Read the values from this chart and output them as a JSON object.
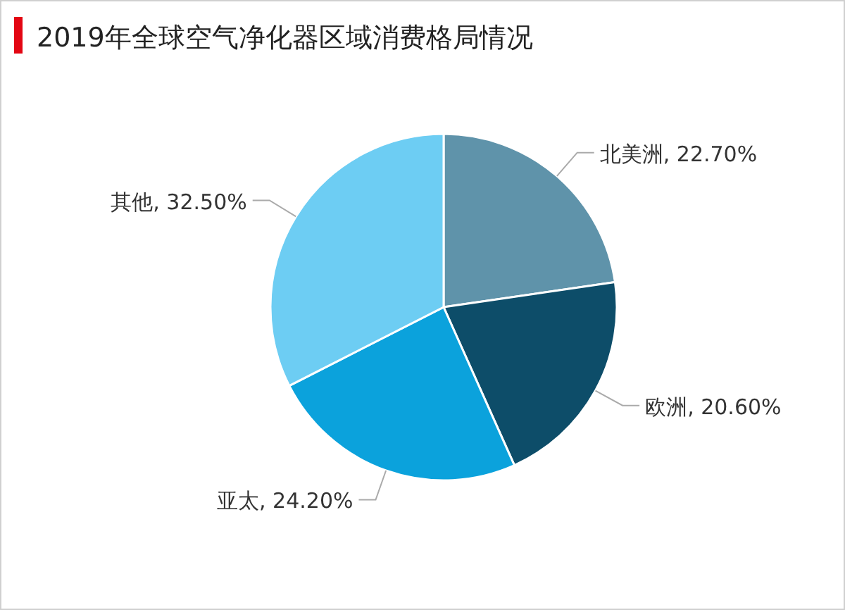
{
  "chart_data": {
    "type": "pie",
    "title": "2019年全球空气净化器区域消费格局情况",
    "categories": [
      "北美洲",
      "欧洲",
      "亚太",
      "其他"
    ],
    "values": [
      22.7,
      20.6,
      24.2,
      32.5
    ],
    "colors": [
      "#5f93aa",
      "#0d4d69",
      "#0ba2dc",
      "#6dcdf3"
    ],
    "value_labels": [
      "22.70%",
      "20.60%",
      "24.20%",
      "32.50%"
    ]
  }
}
